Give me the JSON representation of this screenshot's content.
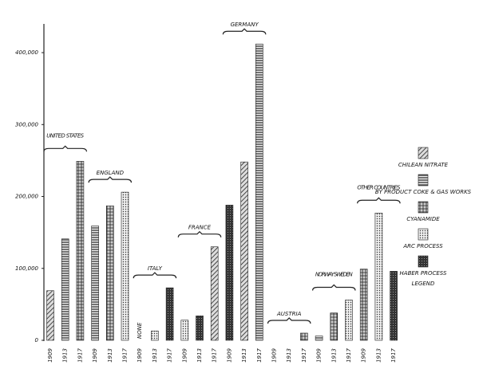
{
  "chart_data": {
    "type": "bar",
    "ylim": [
      0,
      420000
    ],
    "yticks": [
      0,
      {
        "value": 100000,
        "label": "100,000"
      },
      {
        "value": 200000,
        "label": "200,000"
      },
      {
        "value": 300000,
        "label": "300,000"
      },
      {
        "value": 400000,
        "label": "400,000"
      }
    ],
    "color": "#222",
    "groups": [
      {
        "name": "UNITED STATES",
        "categories": [
          "1909",
          "1913",
          "1917"
        ],
        "values": [
          69000,
          141000,
          249000
        ]
      },
      {
        "name": "ENGLAND",
        "categories": [
          "1909",
          "1913",
          "1917"
        ],
        "values": [
          159000,
          187000,
          206000
        ]
      },
      {
        "name": "ITALY",
        "categories": [
          "1909",
          "1913",
          "1917"
        ],
        "values": [
          0,
          13000,
          73000
        ],
        "value_labels": [
          "NONE",
          null,
          null
        ]
      },
      {
        "name": "FRANCE",
        "categories": [
          "1909",
          "1913",
          "1917"
        ],
        "values": [
          28000,
          34000,
          130000
        ]
      },
      {
        "name": "GERMANY",
        "categories": [
          "1909",
          "1913",
          "1917"
        ],
        "values": [
          188000,
          248000,
          412000
        ]
      },
      {
        "name": "AUSTRIA",
        "categories": [
          "1909",
          "1913",
          "1917"
        ],
        "values": [
          0,
          0,
          10000
        ]
      },
      {
        "name": "NORWAY SWEDEN",
        "categories": [
          "1909",
          "1913",
          "1917"
        ],
        "values": [
          6000,
          38000,
          56000
        ]
      },
      {
        "name": "OTHER COUNTRIES",
        "categories": [
          "1909",
          "1913",
          "1917"
        ],
        "values": [
          99000,
          177000,
          96000
        ]
      }
    ],
    "legend": {
      "title": "LEGEND",
      "items": [
        "CHILEAN NITRATE",
        "BY PRODUCT COKE & GAS WORKS",
        "CYANAMIDE",
        "ARC PROCESS",
        "HABER PROCESS"
      ]
    }
  }
}
